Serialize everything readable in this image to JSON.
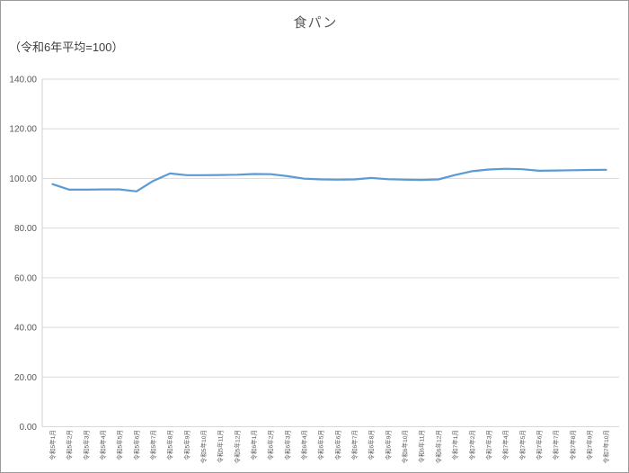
{
  "window": {
    "background": "#ffffff",
    "border_color": "#9b9b9b"
  },
  "chart_data": {
    "type": "line",
    "title": "食パン",
    "subtitle": "（令和6年平均=100）",
    "legend": "none",
    "grid": "horizontal",
    "xlabel": "",
    "ylabel": "",
    "ylim": [
      0,
      140
    ],
    "y_ticks": [
      0,
      20,
      40,
      60,
      80,
      100,
      120,
      140
    ],
    "y_tick_labels": [
      "0.00",
      "20.00",
      "40.00",
      "60.00",
      "80.00",
      "100.00",
      "120.00",
      "140.00"
    ],
    "categories": [
      "令和5年1月",
      "令和5年2月",
      "令和5年3月",
      "令和5年4月",
      "令和5年5月",
      "令和5年6月",
      "令和5年7月",
      "令和5年8月",
      "令和5年9月",
      "令和5年10月",
      "令和5年11月",
      "令和5年12月",
      "令和6年1月",
      "令和6年2月",
      "令和6年3月",
      "令和6年4月",
      "令和6年5月",
      "令和6年6月",
      "令和6年7月",
      "令和6年8月",
      "令和6年9月",
      "令和6年10月",
      "令和6年11月",
      "令和6年12月",
      "令和7年1月",
      "令和7年2月",
      "令和7年3月",
      "令和7年4月",
      "令和7年5月",
      "令和7年6月",
      "令和7年7月",
      "令和7年8月",
      "令和7年9月",
      "令和7年10月"
    ],
    "series": [
      {
        "name": "食パン",
        "color": "#5b9bd5",
        "values": [
          97.7,
          95.5,
          95.5,
          95.6,
          95.6,
          94.8,
          99.0,
          102.0,
          101.3,
          101.3,
          101.4,
          101.5,
          101.8,
          101.7,
          100.9,
          99.9,
          99.6,
          99.5,
          99.6,
          100.2,
          99.7,
          99.5,
          99.4,
          99.6,
          101.4,
          102.9,
          103.6,
          103.9,
          103.7,
          103.1,
          103.2,
          103.3,
          103.4,
          103.5
        ]
      }
    ],
    "colors": {
      "gridline": "#d9d9d9",
      "axis_line": "#d0d0d0",
      "tick_label": "#595959",
      "title_text": "#595959"
    }
  }
}
